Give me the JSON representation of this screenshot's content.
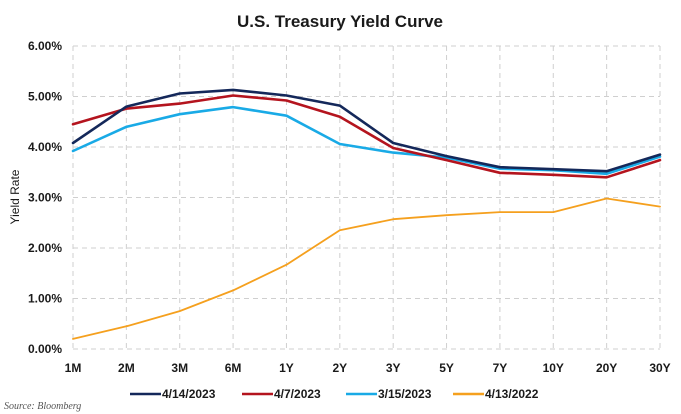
{
  "chart_data": {
    "type": "line",
    "title": "U.S. Treasury Yield Curve",
    "xlabel": "",
    "ylabel": "Yield Rate",
    "categories": [
      "1M",
      "2M",
      "3M",
      "6M",
      "1Y",
      "2Y",
      "3Y",
      "5Y",
      "7Y",
      "10Y",
      "20Y",
      "30Y"
    ],
    "ylim": [
      0,
      6
    ],
    "yticks": [
      "0.00%",
      "1.00%",
      "2.00%",
      "3.00%",
      "4.00%",
      "5.00%",
      "6.00%"
    ],
    "grid": true,
    "legend_position": "bottom",
    "series": [
      {
        "name": "4/14/2023",
        "color": "#14285a",
        "values": [
          4.08,
          4.8,
          5.06,
          5.13,
          5.02,
          4.82,
          4.08,
          3.82,
          3.6,
          3.56,
          3.52,
          3.85
        ]
      },
      {
        "name": "4/7/2023",
        "color": "#b4141e",
        "values": [
          4.45,
          4.76,
          4.86,
          5.02,
          4.92,
          4.6,
          3.98,
          3.74,
          3.49,
          3.45,
          3.4,
          3.74
        ]
      },
      {
        "name": "3/15/2023",
        "color": "#19aae6",
        "values": [
          3.92,
          4.4,
          4.65,
          4.79,
          4.62,
          4.06,
          3.89,
          3.79,
          3.57,
          3.54,
          3.47,
          3.81
        ]
      },
      {
        "name": "4/13/2022",
        "color": "#f5a01e",
        "values": [
          0.2,
          0.45,
          0.75,
          1.16,
          1.67,
          2.35,
          2.57,
          2.65,
          2.71,
          2.71,
          2.98,
          2.82
        ]
      }
    ]
  },
  "footer": {
    "source": "Source: Bloomberg"
  }
}
